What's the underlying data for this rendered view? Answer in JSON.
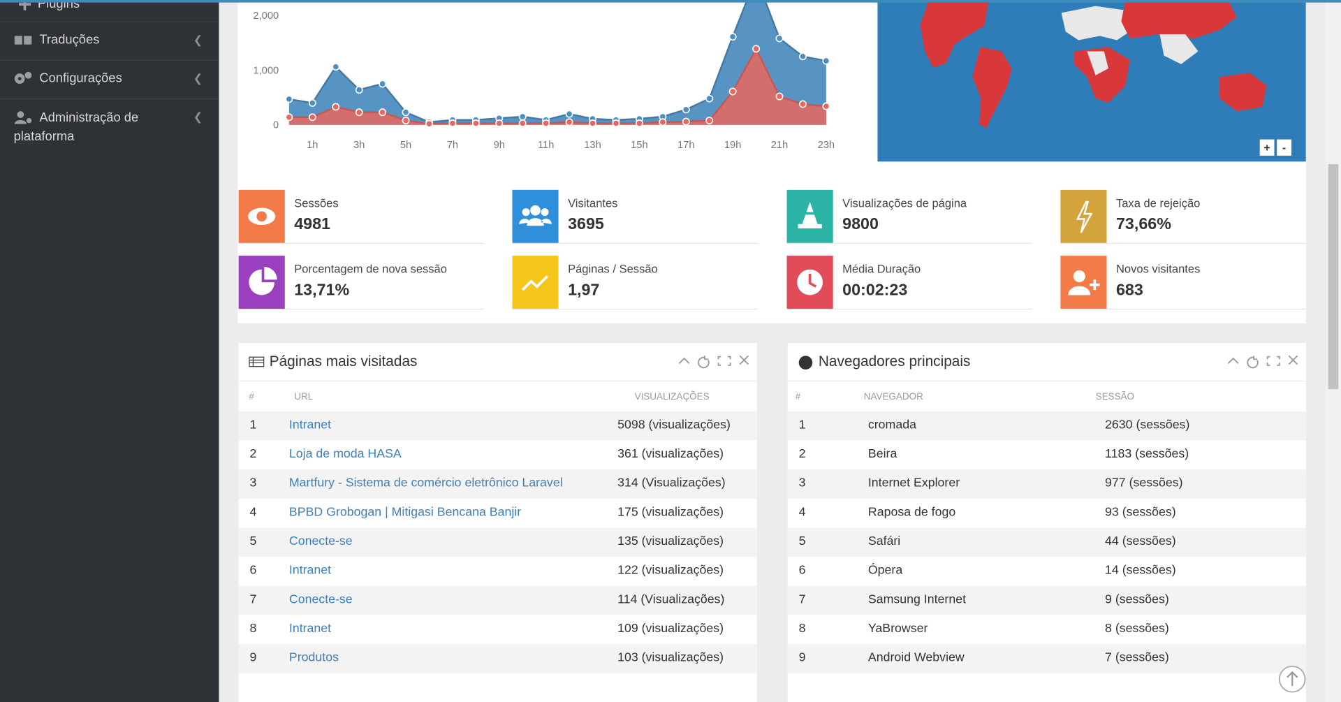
{
  "sidebar": {
    "items": [
      "Plugins",
      "Traduções",
      "Configurações",
      "Administração de plataforma"
    ]
  },
  "chart_data": {
    "type": "area",
    "categories": [
      null,
      "1h",
      null,
      "3h",
      null,
      "5h",
      null,
      "7h",
      null,
      "9h",
      null,
      "11h",
      null,
      "13h",
      null,
      "15h",
      null,
      "17h",
      null,
      "19h",
      null,
      "21h",
      null,
      "23h"
    ],
    "series": [
      {
        "color": "#4f8ec0",
        "values": [
          470,
          400,
          1060,
          640,
          750,
          230,
          50,
          90,
          90,
          120,
          150,
          90,
          200,
          110,
          90,
          110,
          150,
          280,
          480,
          1610,
          2700,
          1580,
          1250,
          1170
        ]
      },
      {
        "color": "#e8675f",
        "values": [
          140,
          140,
          330,
          230,
          230,
          80,
          20,
          30,
          30,
          30,
          30,
          30,
          50,
          30,
          30,
          30,
          50,
          60,
          80,
          610,
          1390,
          520,
          380,
          340
        ]
      }
    ],
    "ylim": [
      0,
      2250
    ],
    "yticks": [
      {
        "value": 2000,
        "label": "2,000"
      },
      {
        "value": 1000,
        "label": "1,000"
      },
      0
    ],
    "grid": false
  },
  "map": {
    "zoom_in": "+",
    "zoom_out": "-"
  },
  "cards": [
    {
      "label": "Sessões",
      "value": "4981",
      "color": "#f27b47"
    },
    {
      "label": "Visitantes",
      "value": "3695",
      "color": "#2f8fdb"
    },
    {
      "label": "Visualizações de página",
      "value": "9800",
      "color": "#2bb3a5"
    },
    {
      "label": "Taxa de rejeição",
      "value": "73,66%",
      "color": "#d3a43b"
    },
    {
      "label": "Porcentagem de nova sessão",
      "value": "13,71%",
      "color": "#9a3fbf"
    },
    {
      "label": "Páginas / Sessão",
      "value": "1,97",
      "color": "#f4c51b"
    },
    {
      "label": "Média Duração",
      "value": "00:02:23",
      "color": "#e14c58"
    },
    {
      "label": "Novos visitantes",
      "value": "683",
      "color": "#f27b47"
    }
  ],
  "tables": [
    {
      "title": "Páginas mais visitadas",
      "columns": [
        "#",
        "URL",
        "VISUALIZAÇÕES"
      ],
      "rows": [
        [
          "1",
          "Intranet",
          "5098 (visualizações)"
        ],
        [
          "2",
          "Loja de moda HASA",
          "361 (visualizações)"
        ],
        [
          "3",
          "Martfury - Sistema de comércio eletrônico Laravel",
          "314 (Visualizações)"
        ],
        [
          "4",
          "BPBD Grobogan | Mitigasi Bencana Banjir",
          "175 (visualizações)"
        ],
        [
          "5",
          "Conecte-se",
          "135 (visualizações)"
        ],
        [
          "6",
          "Intranet",
          "122 (visualizações)"
        ],
        [
          "7",
          "Conecte-se",
          "114 (Visualizações)"
        ],
        [
          "8",
          "Intranet",
          "109 (visualizações)"
        ],
        [
          "9",
          "Produtos",
          "103 (visualizações)"
        ]
      ]
    },
    {
      "title": "Navegadores principais",
      "columns": [
        "#",
        "NAVEGADOR",
        "SESSÃO"
      ],
      "rows": [
        [
          "1",
          "cromada",
          "2630 (sessões)"
        ],
        [
          "2",
          "Beira",
          "1183 (sessões)"
        ],
        [
          "3",
          "Internet Explorer",
          "977 (sessões)"
        ],
        [
          "4",
          "Raposa de fogo",
          "93 (sessões)"
        ],
        [
          "5",
          "Safári",
          "44 (sessões)"
        ],
        [
          "6",
          "Ópera",
          "14 (sessões)"
        ],
        [
          "7",
          "Samsung Internet",
          "9 (sessões)"
        ],
        [
          "8",
          "YaBrowser",
          "8 (sessões)"
        ],
        [
          "9",
          "Android Webview",
          "7 (sessões)"
        ]
      ]
    }
  ]
}
